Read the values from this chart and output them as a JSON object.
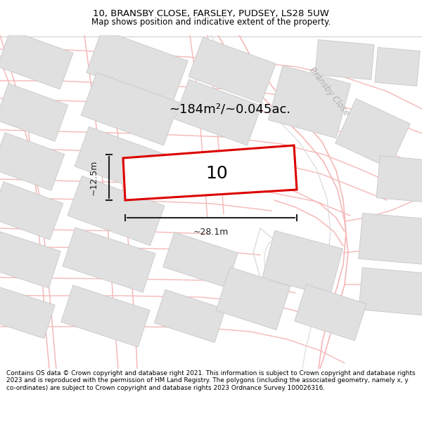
{
  "title_line1": "10, BRANSBY CLOSE, FARSLEY, PUDSEY, LS28 5UW",
  "title_line2": "Map shows position and indicative extent of the property.",
  "area_label": "~184m²/~0.045ac.",
  "property_number": "10",
  "dim_width": "~28.1m",
  "dim_height": "~12.5m",
  "footer_text": "Contains OS data © Crown copyright and database right 2021. This information is subject to Crown copyright and database rights 2023 and is reproduced with the permission of HM Land Registry. The polygons (including the associated geometry, namely x, y co-ordinates) are subject to Crown copyright and database rights 2023 Ordnance Survey 100026316.",
  "bg_color": "#ffffff",
  "map_bg": "#ffffff",
  "road_color": "#f5b8b8",
  "building_color": "#e0e0e0",
  "building_edge": "#c8c8c8",
  "road_outline_color": "#d8d8d8",
  "property_color": "#ffffff",
  "property_edge": "#dd0000",
  "dim_color": "#222222",
  "street_label_color": "#b0b0b0",
  "title_color": "#000000",
  "footer_color": "#000000"
}
